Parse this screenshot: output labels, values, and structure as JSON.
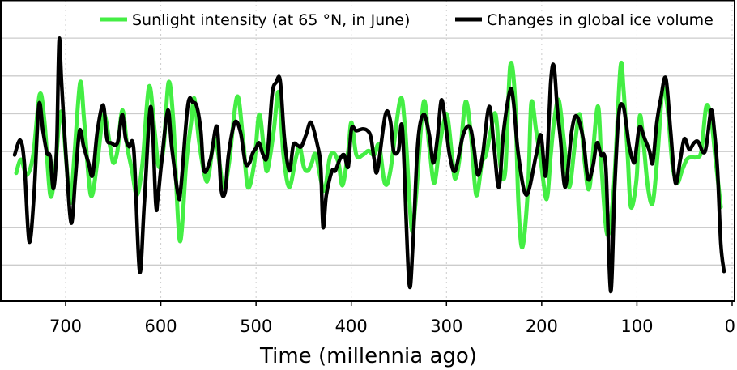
{
  "chart_data": {
    "type": "line",
    "title": "",
    "xlabel": "Time (millennia ago)",
    "ylabel": "",
    "xlim": [
      0,
      770
    ],
    "x_reversed": true,
    "ylim": [
      0,
      7.96
    ],
    "x_ticks": [
      700,
      600,
      500,
      400,
      300,
      200,
      100,
      0
    ],
    "x_tick_labels": [
      "700",
      "600",
      "500",
      "400",
      "300",
      "200",
      "100",
      "0"
    ],
    "y_gridlines": [
      1,
      2,
      3,
      4,
      5,
      6,
      7
    ],
    "y_tick_labels_shown": false,
    "grid": true,
    "legend_position": "top",
    "series": [
      {
        "name": "Sunlight intensity (at 65 °N, in June)",
        "color": "#44ee44",
        "x": [
          751.9,
          746.8,
          740.8,
          734.0,
          727.2,
          722.1,
          716.2,
          711.1,
          706.8,
          703.4,
          699.2,
          694.9,
          690.7,
          684.7,
          680.4,
          673.6,
          666.8,
          660.0,
          653.2,
          649.8,
          645.6,
          640.4,
          635.3,
          630.2,
          625.0,
          619.2,
          612.4,
          606.5,
          602.2,
          597.0,
          591.9,
          586.8,
          580.1,
          573.3,
          568.2,
          564.8,
          559.7,
          553.0,
          549.6,
          542.8,
          534.3,
          528.4,
          519.9,
          513.7,
          508.6,
          501.8,
          496.7,
          491.6,
          488.2,
          481.4,
          476.3,
          471.2,
          465.2,
          458.4,
          454.2,
          449.9,
          445.7,
          441.4,
          437.2,
          428.7,
          422.8,
          418.5,
          413.4,
          409.1,
          403.2,
          399.8,
          394.7,
          387.9,
          381.9,
          376.0,
          370.8,
          364.9,
          358.9,
          348.7,
          343.6,
          336.8,
          332.6,
          324.1,
          318.1,
          313.0,
          307.9,
          304.5,
          299.4,
          294.3,
          290.9,
          285.8,
          279.8,
          273.9,
          268.8,
          262.8,
          258.6,
          253.5,
          248.4,
          243.3,
          238.2,
          233.1,
          228.0,
          224.5,
          220.3,
          214.3,
          210.9,
          205.8,
          200.7,
          194.8,
          190.5,
          187.1,
          182.0,
          176.1,
          171.0,
          165.0,
          159.9,
          154.8,
          149.7,
          141.2,
          136.9,
          131.0,
          124.2,
          117.4,
          114.0,
          109.7,
          106.3,
          100.4,
          97.0,
          92.7,
          88.5,
          83.4,
          78.3,
          73.1,
          68.0,
          62.9,
          57.8,
          52.7,
          47.6,
          42.5,
          37.4,
          32.3,
          27.2,
          22.1,
          17.0,
          11.9
        ],
        "y": [
          3.43,
          3.79,
          3.38,
          3.91,
          5.51,
          4.77,
          2.85,
          3.49,
          4.77,
          4.98,
          3.7,
          2.64,
          3.91,
          5.83,
          4.77,
          2.85,
          3.7,
          4.98,
          4.13,
          3.7,
          4.02,
          5.09,
          4.13,
          3.49,
          2.85,
          3.7,
          5.72,
          4.55,
          3.6,
          4.13,
          5.83,
          4.77,
          1.64,
          3.7,
          4.77,
          5.4,
          4.23,
          3.28,
          3.38,
          4.34,
          3.06,
          3.7,
          5.45,
          4.34,
          3.06,
          3.7,
          4.98,
          4.02,
          3.49,
          4.55,
          5.57,
          3.91,
          3.06,
          3.81,
          4.13,
          3.6,
          3.49,
          3.7,
          3.91,
          2.96,
          3.81,
          3.96,
          3.7,
          3.11,
          4.02,
          4.77,
          3.91,
          3.91,
          4.02,
          3.91,
          4.17,
          3.17,
          3.49,
          5.36,
          4.66,
          2.0,
          2.64,
          5.3,
          4.13,
          3.17,
          4.02,
          4.55,
          4.98,
          3.91,
          3.28,
          3.91,
          5.32,
          4.34,
          2.85,
          3.7,
          3.91,
          4.55,
          4.98,
          3.6,
          3.49,
          6.26,
          5.4,
          2.64,
          1.47,
          3.06,
          5.28,
          4.55,
          3.7,
          2.74,
          3.91,
          4.77,
          5.36,
          4.13,
          3.06,
          4.23,
          4.98,
          3.7,
          3.06,
          5.19,
          3.49,
          1.79,
          3.06,
          6.21,
          5.62,
          3.91,
          2.53,
          3.28,
          4.94,
          4.13,
          3.06,
          2.64,
          3.91,
          5.62,
          5.19,
          3.7,
          3.17,
          3.49,
          3.79,
          3.85,
          3.85,
          4.02,
          5.19,
          4.87,
          3.7,
          2.53
        ]
      },
      {
        "name": "Changes in global ice volume",
        "color": "#000000",
        "x": [
          753.6,
          747.6,
          743.4,
          738.3,
          733.2,
          728.1,
          723.8,
          719.6,
          716.2,
          712.8,
          709.4,
          706.8,
          704.3,
          699.2,
          694.1,
          689.8,
          685.4,
          681.0,
          675.9,
          671.6,
          666.6,
          660.5,
          656.6,
          652.4,
          645.6,
          640.6,
          637.0,
          633.3,
          628.3,
          622.3,
          617.3,
          610.5,
          605.3,
          603.2,
          599.3,
          592.7,
          588.6,
          581.8,
          578.9,
          571.6,
          566.5,
          562.2,
          558.0,
          554.6,
          547.8,
          541.0,
          536.7,
          532.4,
          529.0,
          522.2,
          516.3,
          511.2,
          506.9,
          503.5,
          500.1,
          496.7,
          492.5,
          488.2,
          483.1,
          478.9,
          474.6,
          470.2,
          465.1,
          460.9,
          456.7,
          452.5,
          447.4,
          442.3,
          435.5,
          432.1,
          429.6,
          426.2,
          420.2,
          416.8,
          411.7,
          407.4,
          403.2,
          399.8,
          394.7,
          387.9,
          382.8,
          379.4,
          376.0,
          372.6,
          364.1,
          358.9,
          355.5,
          350.4,
          346.2,
          339.4,
          335.2,
          330.1,
          324.1,
          318.1,
          313.9,
          309.6,
          305.4,
          301.1,
          296.8,
          290.9,
          282.4,
          275.6,
          271.3,
          267.1,
          262.0,
          255.2,
          250.1,
          245.0,
          239.9,
          233.1,
          229.6,
          224.5,
          216.0,
          205.8,
          200.7,
          195.6,
          190.5,
          187.1,
          183.7,
          180.3,
          175.2,
          168.4,
          163.3,
          156.5,
          151.4,
          146.3,
          142.0,
          137.8,
          132.7,
          127.6,
          123.3,
          119.1,
          114.8,
          111.4,
          108.0,
          102.9,
          100.4,
          97.0,
          91.9,
          86.8,
          83.4,
          79.1,
          74.9,
          69.7,
          64.6,
          59.5,
          54.4,
          50.2,
          45.1,
          40.0,
          35.7,
          30.6,
          27.2,
          22.1,
          18.7,
          15.3,
          11.9,
          8.5
        ],
        "y": [
          3.91,
          4.3,
          3.7,
          1.62,
          2.85,
          5.23,
          4.55,
          3.96,
          3.87,
          3.02,
          4.13,
          6.94,
          5.83,
          3.7,
          2.11,
          3.28,
          4.55,
          4.13,
          3.7,
          3.38,
          4.55,
          5.23,
          4.34,
          4.23,
          4.23,
          4.98,
          4.34,
          4.13,
          4.02,
          0.83,
          2.64,
          5.19,
          2.64,
          2.74,
          3.7,
          5.09,
          4.13,
          2.85,
          3.06,
          5.23,
          5.3,
          5.19,
          4.55,
          3.49,
          3.81,
          4.66,
          3.02,
          2.94,
          3.91,
          4.77,
          4.51,
          3.7,
          3.7,
          3.96,
          4.09,
          4.23,
          3.91,
          3.91,
          5.51,
          5.83,
          5.87,
          4.34,
          3.49,
          4.17,
          4.17,
          4.13,
          4.45,
          4.77,
          4.17,
          3.6,
          2.0,
          2.85,
          3.49,
          3.49,
          3.81,
          3.91,
          3.6,
          4.6,
          4.55,
          4.6,
          4.55,
          4.38,
          3.81,
          3.49,
          4.98,
          4.81,
          4.02,
          4.02,
          4.55,
          0.55,
          1.57,
          4.23,
          4.98,
          4.45,
          3.7,
          4.34,
          5.36,
          4.77,
          3.91,
          3.49,
          4.45,
          4.66,
          4.13,
          3.38,
          3.91,
          5.19,
          4.13,
          3.06,
          4.55,
          5.62,
          5.3,
          3.91,
          2.85,
          3.91,
          4.43,
          3.38,
          5.83,
          6.26,
          5.15,
          4.34,
          3.06,
          4.55,
          4.94,
          4.34,
          3.28,
          3.6,
          4.23,
          3.91,
          3.6,
          0.3,
          3.06,
          4.98,
          5.23,
          4.77,
          4.13,
          3.7,
          4.13,
          4.66,
          4.34,
          4.02,
          3.7,
          4.77,
          5.4,
          5.94,
          4.55,
          3.17,
          3.79,
          4.34,
          4.06,
          4.23,
          4.26,
          3.98,
          4.13,
          5.09,
          4.55,
          3.49,
          1.57,
          0.83
        ]
      }
    ]
  }
}
